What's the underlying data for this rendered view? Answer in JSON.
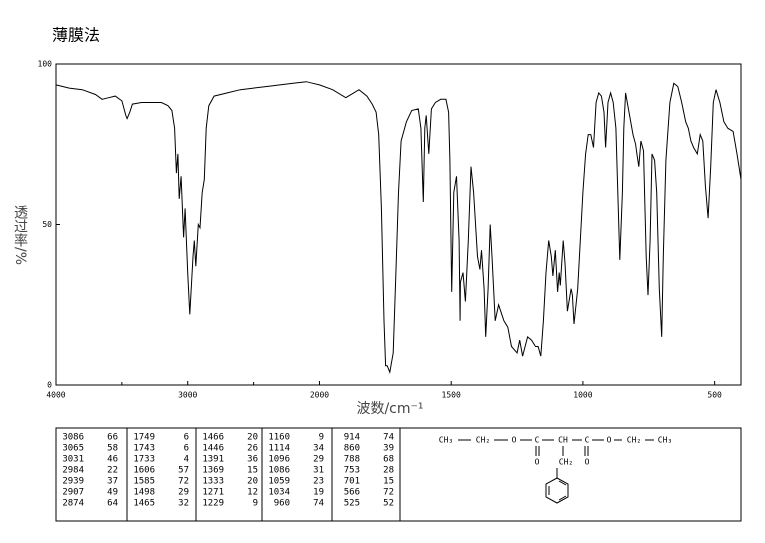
{
  "chart_data": {
    "type": "line",
    "title": "薄膜法",
    "x_label": "波数/cm⁻¹",
    "y_label": "透过率/%",
    "x": [
      4000,
      3900,
      3800,
      3700,
      3650,
      3600,
      3550,
      3500,
      3470,
      3460,
      3440,
      3420,
      3350,
      3250,
      3200,
      3150,
      3120,
      3100,
      3086,
      3075,
      3065,
      3050,
      3031,
      3020,
      3000,
      2984,
      2960,
      2950,
      2939,
      2920,
      2907,
      2890,
      2874,
      2860,
      2840,
      2800,
      2700,
      2600,
      2500,
      2400,
      2300,
      2200,
      2100,
      2050,
      2000,
      1950,
      1900,
      1870,
      1850,
      1820,
      1800,
      1785,
      1775,
      1765,
      1755,
      1749,
      1743,
      1733,
      1720,
      1710,
      1700,
      1690,
      1670,
      1650,
      1625,
      1615,
      1606,
      1600,
      1595,
      1585,
      1575,
      1560,
      1540,
      1520,
      1510,
      1505,
      1498,
      1490,
      1480,
      1470,
      1466,
      1465,
      1455,
      1446,
      1435,
      1425,
      1415,
      1400,
      1391,
      1385,
      1375,
      1369,
      1360,
      1352,
      1345,
      1333,
      1320,
      1300,
      1285,
      1271,
      1250,
      1240,
      1229,
      1210,
      1195,
      1180,
      1170,
      1160,
      1150,
      1140,
      1130,
      1120,
      1114,
      1105,
      1096,
      1090,
      1086,
      1075,
      1068,
      1059,
      1045,
      1040,
      1034,
      1020,
      1010,
      1000,
      990,
      980,
      970,
      960,
      950,
      940,
      930,
      920,
      914,
      905,
      895,
      885,
      875,
      860,
      850,
      845,
      838,
      825,
      810,
      800,
      795,
      788,
      780,
      770,
      760,
      753,
      745,
      738,
      728,
      720,
      710,
      701,
      695,
      685,
      670,
      655,
      640,
      625,
      610,
      600,
      590,
      580,
      566,
      555,
      545,
      535,
      525,
      515,
      505,
      495,
      480,
      465,
      450,
      430,
      415,
      400
    ],
    "series": [
      {
        "color": "#000000",
        "values": [
          93.5,
          92.5,
          92,
          90.5,
          89,
          89.5,
          90,
          88.5,
          84,
          83,
          85,
          87.5,
          88,
          88,
          88,
          87,
          85.5,
          80,
          66,
          72,
          58,
          65,
          46,
          55,
          35,
          22,
          40,
          45,
          37,
          50,
          49,
          60,
          64,
          80,
          87,
          90,
          91,
          92,
          92.5,
          93,
          93.5,
          94,
          94.5,
          94,
          93.5,
          92,
          89.5,
          91,
          92,
          90,
          87.5,
          85,
          78,
          55,
          20,
          6,
          6,
          4,
          10,
          35,
          60,
          76,
          82,
          85.5,
          86,
          80,
          57,
          80,
          84,
          72,
          86,
          88,
          89,
          89,
          85,
          70,
          29,
          60,
          65,
          45,
          20,
          32,
          35,
          26,
          45,
          68,
          60,
          40,
          36,
          42,
          30,
          15,
          30,
          50,
          40,
          20,
          25,
          20,
          18,
          12,
          10,
          14,
          9,
          15,
          14,
          12,
          12,
          9,
          20,
          35,
          45,
          40,
          34,
          42,
          29,
          35,
          31,
          45,
          38,
          23,
          30,
          28,
          19,
          30,
          45,
          60,
          72,
          78,
          78,
          74,
          88,
          91,
          90,
          85,
          74,
          88,
          91,
          88,
          80,
          39,
          60,
          80,
          91,
          85,
          78,
          75,
          72,
          68,
          76,
          73,
          40,
          28,
          45,
          72,
          70,
          60,
          30,
          15,
          40,
          70,
          88,
          94,
          93,
          88,
          82,
          80,
          76,
          74,
          72,
          78,
          76,
          62,
          52,
          68,
          88,
          92,
          88,
          82,
          80,
          79,
          72,
          64
        ]
      }
    ],
    "xlim": [
      4000,
      400
    ],
    "xbreak": 2000,
    "xticks": [
      4000,
      3000,
      2000,
      1500,
      1000,
      500
    ],
    "xminorticks": [
      3500,
      2500
    ],
    "ylim": [
      0,
      100
    ],
    "yticks": [
      0,
      50,
      100
    ]
  },
  "peak_table": {
    "columns": [
      [
        [
          3086,
          66
        ],
        [
          3065,
          58
        ],
        [
          3031,
          46
        ],
        [
          2984,
          22
        ],
        [
          2939,
          37
        ],
        [
          2907,
          49
        ],
        [
          2874,
          64
        ]
      ],
      [
        [
          1749,
          6
        ],
        [
          1743,
          6
        ],
        [
          1733,
          4
        ],
        [
          1606,
          57
        ],
        [
          1585,
          72
        ],
        [
          1498,
          29
        ],
        [
          1465,
          32
        ]
      ],
      [
        [
          1466,
          20
        ],
        [
          1446,
          26
        ],
        [
          1391,
          36
        ],
        [
          1369,
          15
        ],
        [
          1333,
          20
        ],
        [
          1271,
          12
        ],
        [
          1229,
          9
        ]
      ],
      [
        [
          1160,
          9
        ],
        [
          1114,
          34
        ],
        [
          1096,
          29
        ],
        [
          1086,
          31
        ],
        [
          1059,
          23
        ],
        [
          1034,
          19
        ],
        [
          960,
          74
        ]
      ],
      [
        [
          914,
          74
        ],
        [
          860,
          39
        ],
        [
          788,
          68
        ],
        [
          753,
          28
        ],
        [
          701,
          15
        ],
        [
          566,
          72
        ],
        [
          525,
          52
        ]
      ]
    ]
  },
  "structure": {
    "chain": [
      "CH₃",
      "CH₂",
      "O",
      "C",
      "CH",
      "C",
      "O",
      "CH₂",
      "CH₃"
    ],
    "carbonyl_o": [
      "O",
      "O"
    ],
    "branch": "CH₂"
  }
}
